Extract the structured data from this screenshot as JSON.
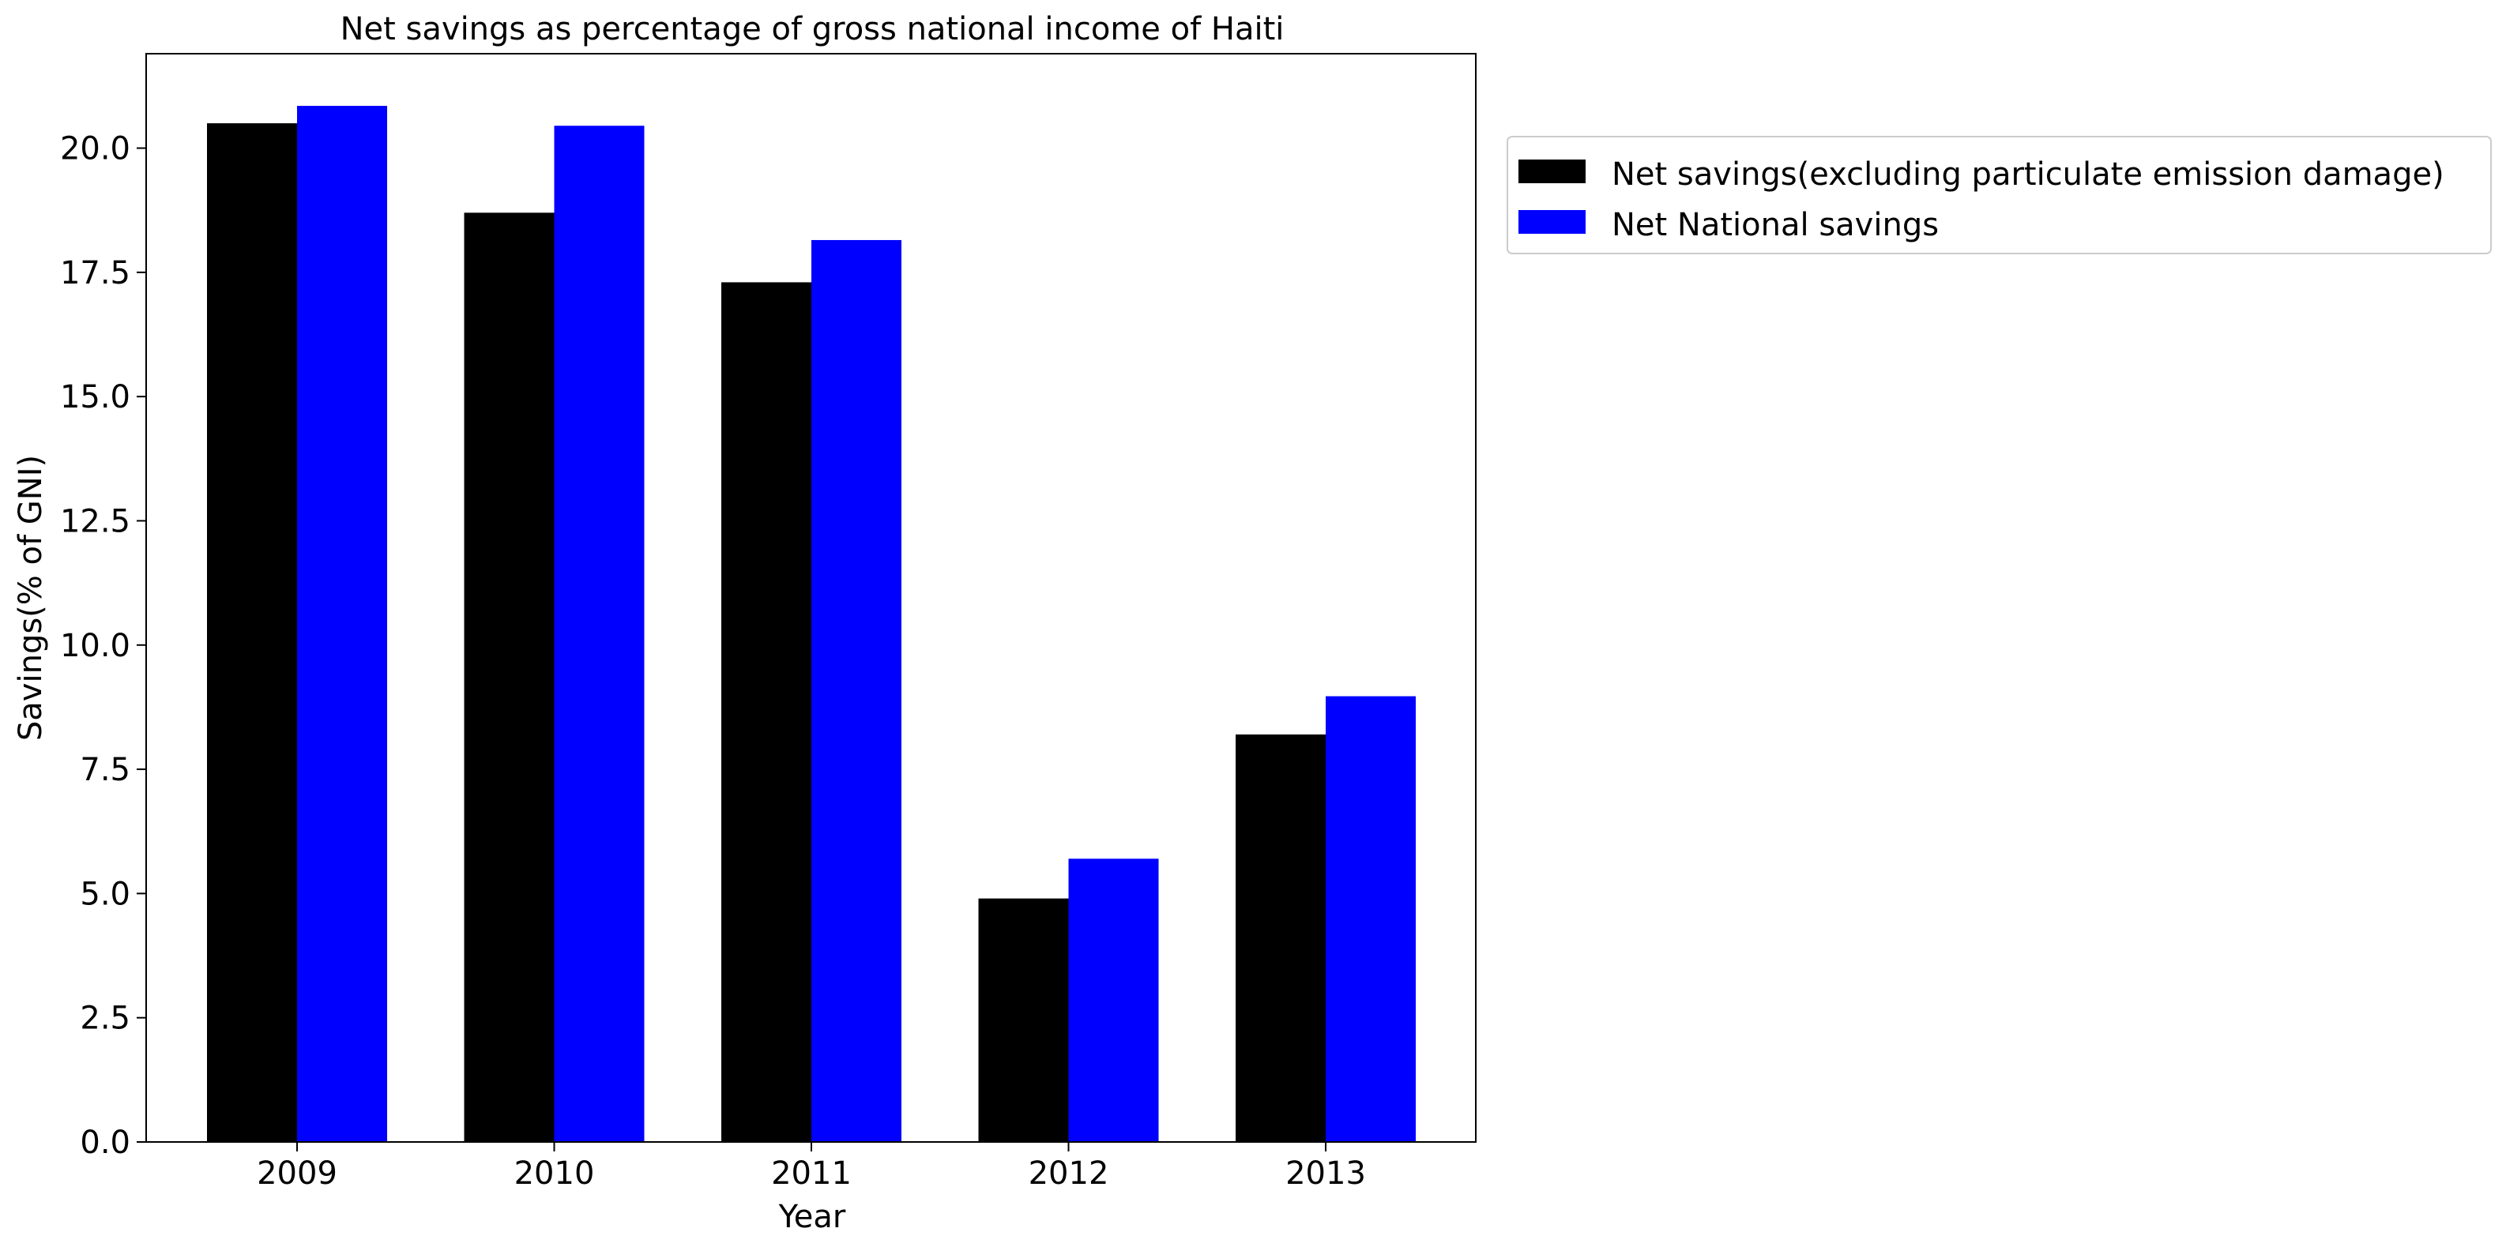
{
  "chart_data": {
    "type": "bar",
    "title": "Net savings as percentage of gross national income of Haiti",
    "xlabel": "Year",
    "ylabel": "Savings(% of GNI)",
    "categories": [
      "2009",
      "2010",
      "2011",
      "2012",
      "2013"
    ],
    "ylim": [
      0,
      21.9
    ],
    "yticks": [
      "0.0",
      "2.5",
      "5.0",
      "7.5",
      "10.0",
      "12.5",
      "15.0",
      "17.5",
      "20.0"
    ],
    "grid": false,
    "legend_position": "outside-top-right",
    "series": [
      {
        "name": "Net savings(excluding particulate emission damage)",
        "color": "#000000",
        "values": [
          20.5,
          18.7,
          17.3,
          4.9,
          8.2
        ]
      },
      {
        "name": "Net National savings",
        "color": "#0000ff",
        "values": [
          20.85,
          20.45,
          18.15,
          5.7,
          8.97
        ]
      }
    ]
  }
}
